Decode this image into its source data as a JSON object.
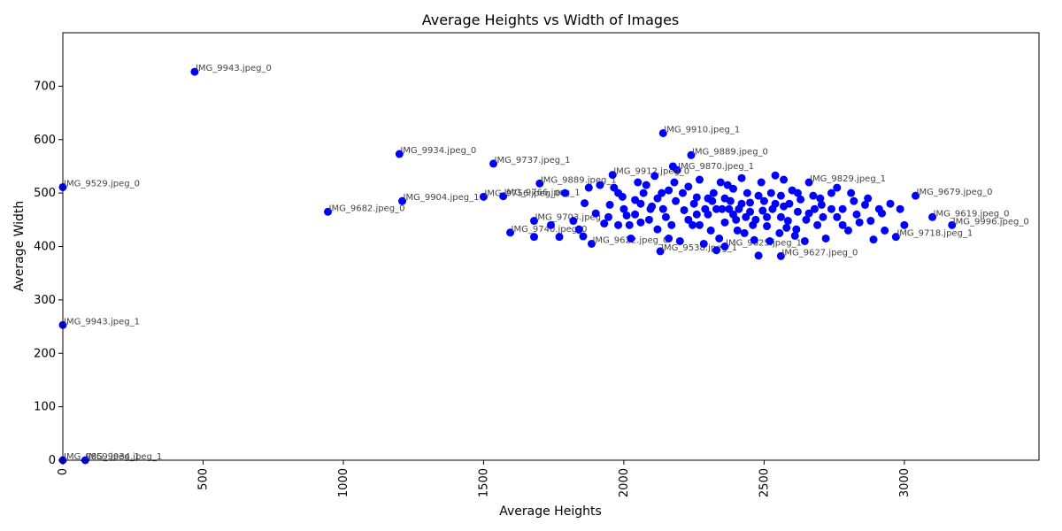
{
  "chart_data": {
    "type": "scatter",
    "title": "Average Heights vs Width of Images",
    "xlabel": "Average Heights",
    "ylabel": "Average Width",
    "xlim": [
      0,
      3480
    ],
    "ylim": [
      0,
      800
    ],
    "xticks": [
      0,
      500,
      1000,
      1500,
      2000,
      2500,
      3000
    ],
    "yticks": [
      0,
      100,
      200,
      300,
      400,
      500,
      600,
      700
    ],
    "xtick_rotation": 90,
    "grid": false,
    "marker_color": "#0000ff",
    "label_color": "#444444",
    "points": [
      {
        "x": 470,
        "y": 727,
        "label": "IMG_9943.jpeg_0"
      },
      {
        "x": 2140,
        "y": 612,
        "label": "IMG_9910.jpeg_1"
      },
      {
        "x": 1200,
        "y": 573,
        "label": "IMG_9934.jpeg_0"
      },
      {
        "x": 2240,
        "y": 571,
        "label": "IMG_9889.jpeg_0"
      },
      {
        "x": 1535,
        "y": 555,
        "label": "IMG_9737.jpeg_1"
      },
      {
        "x": 0,
        "y": 511,
        "label": "IMG_9529.jpeg_0"
      },
      {
        "x": 1210,
        "y": 485,
        "label": "IMG_9904.jpeg_1"
      },
      {
        "x": 945,
        "y": 465,
        "label": "IMG_9682.jpeg_0"
      },
      {
        "x": 0,
        "y": 253,
        "label": "IMG_9943.jpeg_1"
      },
      {
        "x": 0,
        "y": 0,
        "label": "IMG_9859.jpeg_1"
      },
      {
        "x": 80,
        "y": 0,
        "label": "IMG_9934.jpeg_1"
      },
      {
        "x": 3040,
        "y": 495,
        "label": "IMG_9679.jpeg_0"
      },
      {
        "x": 3170,
        "y": 440,
        "label": "IMG_9996.jpeg_0"
      },
      {
        "x": 3100,
        "y": 455,
        "label": "IMG_9619.jpeg_0"
      },
      {
        "x": 2970,
        "y": 418,
        "label": "IMG_9718.jpeg_1"
      },
      {
        "x": 2130,
        "y": 391,
        "label": "IMG_9538.jpeg_1"
      },
      {
        "x": 1885,
        "y": 405,
        "label": "IMG_9622.jpeg_0"
      },
      {
        "x": 1700,
        "y": 518,
        "label": "IMG_9889.jpeg_1"
      },
      {
        "x": 1500,
        "y": 493,
        "label": "IMG_9756.jpeg_0"
      },
      {
        "x": 1570,
        "y": 494,
        "label": "IMG_9766.jpeg_1"
      },
      {
        "x": 1595,
        "y": 426,
        "label": "IMG_9740.jpeg_0"
      },
      {
        "x": 1680,
        "y": 448,
        "label": "IMG_9703.jpeg_1"
      },
      {
        "x": 2190,
        "y": 543,
        "label": "IMG_9870.jpeg_1"
      },
      {
        "x": 1960,
        "y": 534,
        "label": "IMG_9912.jpeg_0"
      },
      {
        "x": 2660,
        "y": 520,
        "label": "IMG_9829.jpeg_1"
      },
      {
        "x": 2560,
        "y": 382,
        "label": "IMG_9627.jpeg_0"
      },
      {
        "x": 2360,
        "y": 400,
        "label": "IMG_9625.jpeg_1"
      },
      {
        "x": 1680,
        "y": 418,
        "label": ""
      },
      {
        "x": 1740,
        "y": 440,
        "label": ""
      },
      {
        "x": 1770,
        "y": 418,
        "label": ""
      },
      {
        "x": 1790,
        "y": 500,
        "label": ""
      },
      {
        "x": 1820,
        "y": 448,
        "label": ""
      },
      {
        "x": 1840,
        "y": 432,
        "label": ""
      },
      {
        "x": 1855,
        "y": 419,
        "label": ""
      },
      {
        "x": 1860,
        "y": 481,
        "label": ""
      },
      {
        "x": 1875,
        "y": 510,
        "label": ""
      },
      {
        "x": 1900,
        "y": 462,
        "label": ""
      },
      {
        "x": 1915,
        "y": 515,
        "label": ""
      },
      {
        "x": 1930,
        "y": 443,
        "label": ""
      },
      {
        "x": 1950,
        "y": 478,
        "label": ""
      },
      {
        "x": 1965,
        "y": 510,
        "label": ""
      },
      {
        "x": 1980,
        "y": 440,
        "label": ""
      },
      {
        "x": 1995,
        "y": 493,
        "label": ""
      },
      {
        "x": 2010,
        "y": 458,
        "label": ""
      },
      {
        "x": 2025,
        "y": 415,
        "label": ""
      },
      {
        "x": 2040,
        "y": 487,
        "label": ""
      },
      {
        "x": 2060,
        "y": 445,
        "label": ""
      },
      {
        "x": 2080,
        "y": 515,
        "label": ""
      },
      {
        "x": 2095,
        "y": 470,
        "label": ""
      },
      {
        "x": 2110,
        "y": 532,
        "label": ""
      },
      {
        "x": 2120,
        "y": 432,
        "label": ""
      },
      {
        "x": 2135,
        "y": 500,
        "label": ""
      },
      {
        "x": 2150,
        "y": 455,
        "label": ""
      },
      {
        "x": 2160,
        "y": 415,
        "label": ""
      },
      {
        "x": 2175,
        "y": 550,
        "label": ""
      },
      {
        "x": 2185,
        "y": 485,
        "label": ""
      },
      {
        "x": 2200,
        "y": 410,
        "label": ""
      },
      {
        "x": 2215,
        "y": 468,
        "label": ""
      },
      {
        "x": 2230,
        "y": 512,
        "label": ""
      },
      {
        "x": 2245,
        "y": 440,
        "label": ""
      },
      {
        "x": 2260,
        "y": 492,
        "label": ""
      },
      {
        "x": 2270,
        "y": 525,
        "label": ""
      },
      {
        "x": 2285,
        "y": 405,
        "label": ""
      },
      {
        "x": 2300,
        "y": 460,
        "label": ""
      },
      {
        "x": 2315,
        "y": 485,
        "label": ""
      },
      {
        "x": 2330,
        "y": 393,
        "label": ""
      },
      {
        "x": 2345,
        "y": 520,
        "label": ""
      },
      {
        "x": 2360,
        "y": 445,
        "label": ""
      },
      {
        "x": 2375,
        "y": 470,
        "label": ""
      },
      {
        "x": 2390,
        "y": 508,
        "label": ""
      },
      {
        "x": 2405,
        "y": 430,
        "label": ""
      },
      {
        "x": 2420,
        "y": 528,
        "label": ""
      },
      {
        "x": 2435,
        "y": 455,
        "label": ""
      },
      {
        "x": 2450,
        "y": 482,
        "label": ""
      },
      {
        "x": 2465,
        "y": 412,
        "label": ""
      },
      {
        "x": 2480,
        "y": 383,
        "label": ""
      },
      {
        "x": 2495,
        "y": 467,
        "label": ""
      },
      {
        "x": 2510,
        "y": 438,
        "label": ""
      },
      {
        "x": 2525,
        "y": 500,
        "label": ""
      },
      {
        "x": 2540,
        "y": 533,
        "label": ""
      },
      {
        "x": 2555,
        "y": 425,
        "label": ""
      },
      {
        "x": 2570,
        "y": 475,
        "label": ""
      },
      {
        "x": 2585,
        "y": 448,
        "label": ""
      },
      {
        "x": 2600,
        "y": 505,
        "label": ""
      },
      {
        "x": 2615,
        "y": 432,
        "label": ""
      },
      {
        "x": 2630,
        "y": 488,
        "label": ""
      },
      {
        "x": 2645,
        "y": 410,
        "label": ""
      },
      {
        "x": 2660,
        "y": 462,
        "label": ""
      },
      {
        "x": 2675,
        "y": 495,
        "label": ""
      },
      {
        "x": 2690,
        "y": 440,
        "label": ""
      },
      {
        "x": 2705,
        "y": 478,
        "label": ""
      },
      {
        "x": 2720,
        "y": 415,
        "label": ""
      },
      {
        "x": 2740,
        "y": 500,
        "label": ""
      },
      {
        "x": 2760,
        "y": 455,
        "label": ""
      },
      {
        "x": 2780,
        "y": 470,
        "label": ""
      },
      {
        "x": 2800,
        "y": 430,
        "label": ""
      },
      {
        "x": 2820,
        "y": 485,
        "label": ""
      },
      {
        "x": 2840,
        "y": 445,
        "label": ""
      },
      {
        "x": 2860,
        "y": 478,
        "label": ""
      },
      {
        "x": 2890,
        "y": 413,
        "label": ""
      },
      {
        "x": 2920,
        "y": 462,
        "label": ""
      },
      {
        "x": 2950,
        "y": 480,
        "label": ""
      },
      {
        "x": 2985,
        "y": 470,
        "label": ""
      },
      {
        "x": 2050,
        "y": 520,
        "label": ""
      },
      {
        "x": 2070,
        "y": 500,
        "label": ""
      },
      {
        "x": 2100,
        "y": 475,
        "label": ""
      },
      {
        "x": 2140,
        "y": 470,
        "label": ""
      },
      {
        "x": 2170,
        "y": 440,
        "label": ""
      },
      {
        "x": 2210,
        "y": 500,
        "label": ""
      },
      {
        "x": 2250,
        "y": 480,
        "label": ""
      },
      {
        "x": 2290,
        "y": 470,
        "label": ""
      },
      {
        "x": 2320,
        "y": 500,
        "label": ""
      },
      {
        "x": 2350,
        "y": 470,
        "label": ""
      },
      {
        "x": 2380,
        "y": 485,
        "label": ""
      },
      {
        "x": 2410,
        "y": 470,
        "label": ""
      },
      {
        "x": 2440,
        "y": 500,
        "label": ""
      },
      {
        "x": 2470,
        "y": 450,
        "label": ""
      },
      {
        "x": 2500,
        "y": 485,
        "label": ""
      },
      {
        "x": 2530,
        "y": 470,
        "label": ""
      },
      {
        "x": 2560,
        "y": 455,
        "label": ""
      },
      {
        "x": 2590,
        "y": 480,
        "label": ""
      },
      {
        "x": 2620,
        "y": 465,
        "label": ""
      },
      {
        "x": 2650,
        "y": 450,
        "label": ""
      },
      {
        "x": 2680,
        "y": 470,
        "label": ""
      },
      {
        "x": 2710,
        "y": 455,
        "label": ""
      },
      {
        "x": 2230,
        "y": 450,
        "label": ""
      },
      {
        "x": 2270,
        "y": 440,
        "label": ""
      },
      {
        "x": 2310,
        "y": 430,
        "label": ""
      },
      {
        "x": 2340,
        "y": 415,
        "label": ""
      },
      {
        "x": 2400,
        "y": 450,
        "label": ""
      },
      {
        "x": 2430,
        "y": 425,
        "label": ""
      },
      {
        "x": 2460,
        "y": 440,
        "label": ""
      },
      {
        "x": 2520,
        "y": 410,
        "label": ""
      },
      {
        "x": 2580,
        "y": 435,
        "label": ""
      },
      {
        "x": 2610,
        "y": 420,
        "label": ""
      },
      {
        "x": 2880,
        "y": 448,
        "label": ""
      },
      {
        "x": 2930,
        "y": 430,
        "label": ""
      },
      {
        "x": 3000,
        "y": 440,
        "label": ""
      },
      {
        "x": 2760,
        "y": 510,
        "label": ""
      },
      {
        "x": 2810,
        "y": 500,
        "label": ""
      },
      {
        "x": 2570,
        "y": 525,
        "label": ""
      },
      {
        "x": 2490,
        "y": 520,
        "label": ""
      },
      {
        "x": 2370,
        "y": 515,
        "label": ""
      },
      {
        "x": 2000,
        "y": 470,
        "label": ""
      },
      {
        "x": 1980,
        "y": 500,
        "label": ""
      },
      {
        "x": 2020,
        "y": 440,
        "label": ""
      },
      {
        "x": 1945,
        "y": 455,
        "label": ""
      },
      {
        "x": 2180,
        "y": 520,
        "label": ""
      },
      {
        "x": 2160,
        "y": 505,
        "label": ""
      },
      {
        "x": 2120,
        "y": 490,
        "label": ""
      },
      {
        "x": 2060,
        "y": 480,
        "label": ""
      },
      {
        "x": 2040,
        "y": 460,
        "label": ""
      },
      {
        "x": 2090,
        "y": 450,
        "label": ""
      },
      {
        "x": 2260,
        "y": 460,
        "label": ""
      },
      {
        "x": 2300,
        "y": 490,
        "label": ""
      },
      {
        "x": 2330,
        "y": 470,
        "label": ""
      },
      {
        "x": 2360,
        "y": 490,
        "label": ""
      },
      {
        "x": 2390,
        "y": 460,
        "label": ""
      },
      {
        "x": 2420,
        "y": 480,
        "label": ""
      },
      {
        "x": 2450,
        "y": 465,
        "label": ""
      },
      {
        "x": 2480,
        "y": 495,
        "label": ""
      },
      {
        "x": 2510,
        "y": 455,
        "label": ""
      },
      {
        "x": 2540,
        "y": 480,
        "label": ""
      },
      {
        "x": 2560,
        "y": 495,
        "label": ""
      },
      {
        "x": 2620,
        "y": 500,
        "label": ""
      },
      {
        "x": 2700,
        "y": 490,
        "label": ""
      },
      {
        "x": 2740,
        "y": 470,
        "label": ""
      },
      {
        "x": 2780,
        "y": 440,
        "label": ""
      },
      {
        "x": 2830,
        "y": 460,
        "label": ""
      },
      {
        "x": 2870,
        "y": 490,
        "label": ""
      },
      {
        "x": 2910,
        "y": 470,
        "label": ""
      }
    ]
  }
}
